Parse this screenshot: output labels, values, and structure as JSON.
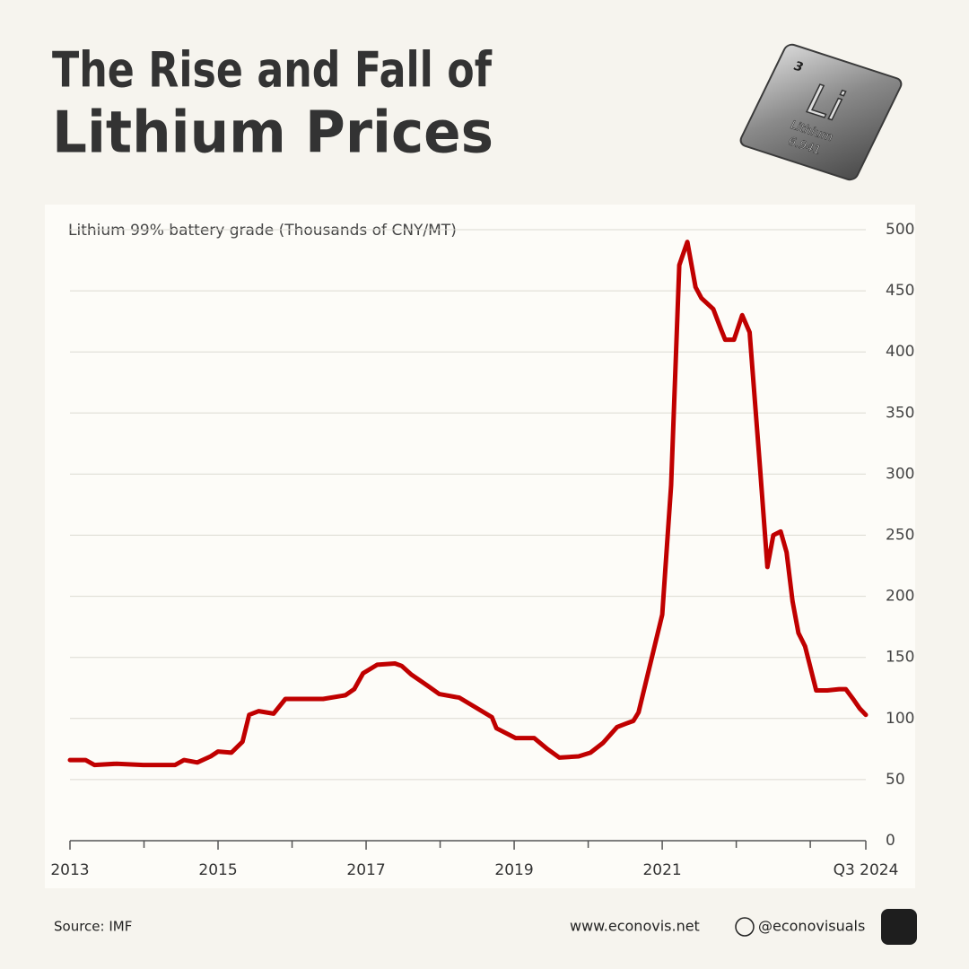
{
  "chart_data": {
    "type": "line",
    "title": "The Rise and Fall of",
    "subtitle": "Lithium Prices",
    "y_label": "Lithium 99% battery grade (Thousands of CNY/MT)",
    "color": "#c00000",
    "x": [
      2013.0,
      2013.21,
      2013.33,
      2013.63,
      2013.99,
      2014.42,
      2014.54,
      2014.72,
      2014.9,
      2015.0,
      2015.18,
      2015.33,
      2015.42,
      2015.55,
      2015.75,
      2015.91,
      2016.18,
      2016.42,
      2016.72,
      2016.84,
      2016.96,
      2017.15,
      2017.39,
      2017.48,
      2017.61,
      2017.85,
      2017.99,
      2018.26,
      2018.48,
      2018.7,
      2018.76,
      2019.02,
      2019.27,
      2019.45,
      2019.61,
      2019.87,
      2020.03,
      2020.2,
      2020.39,
      2020.52,
      2020.61,
      2020.68,
      2020.84,
      2021.0,
      2021.12,
      2021.23,
      2021.34,
      2021.45,
      2021.53,
      2021.69,
      2021.79,
      2021.85,
      2021.97,
      2022.08,
      2022.18,
      2022.32,
      2022.42,
      2022.5,
      2022.6,
      2022.68,
      2022.76,
      2022.84,
      2022.93,
      2023.08,
      2023.23,
      2023.39,
      2023.48,
      2023.59,
      2023.67,
      2023.75
    ],
    "values": [
      66,
      66,
      62,
      63,
      62,
      62,
      66,
      64,
      69,
      73,
      72,
      81,
      103,
      106,
      104,
      116,
      116,
      116,
      119,
      124,
      137,
      144,
      145,
      143,
      136,
      126,
      120,
      117,
      109,
      101,
      92,
      84,
      84,
      75,
      68,
      69,
      72,
      80,
      93,
      96,
      98,
      105,
      145,
      185,
      291,
      471,
      490,
      453,
      444,
      435,
      419,
      410,
      410,
      430,
      416,
      306,
      224,
      250,
      253,
      236,
      196,
      170,
      159,
      123,
      123,
      124,
      124,
      115,
      108,
      103
    ],
    "xlim": [
      2013,
      2023.75
    ],
    "xticks": [
      2013,
      2015,
      2017,
      2019,
      2021,
      {
        "value": 2023.75,
        "label": "Q3 2024"
      }
    ],
    "xminorticks": [
      2014,
      2016,
      2018,
      2020,
      2022,
      2023
    ],
    "ylim": [
      0,
      500
    ],
    "yticks": [
      0,
      50,
      100,
      150,
      200,
      250,
      300,
      350,
      400,
      450,
      500
    ],
    "grid": true
  },
  "footer": {
    "source": "Source: IMF",
    "website": "www.econovis.net",
    "handle": "@econovisuals"
  },
  "element_tile": {
    "number": "3",
    "symbol": "Li",
    "name": "Lithium",
    "mass": "6.941"
  }
}
